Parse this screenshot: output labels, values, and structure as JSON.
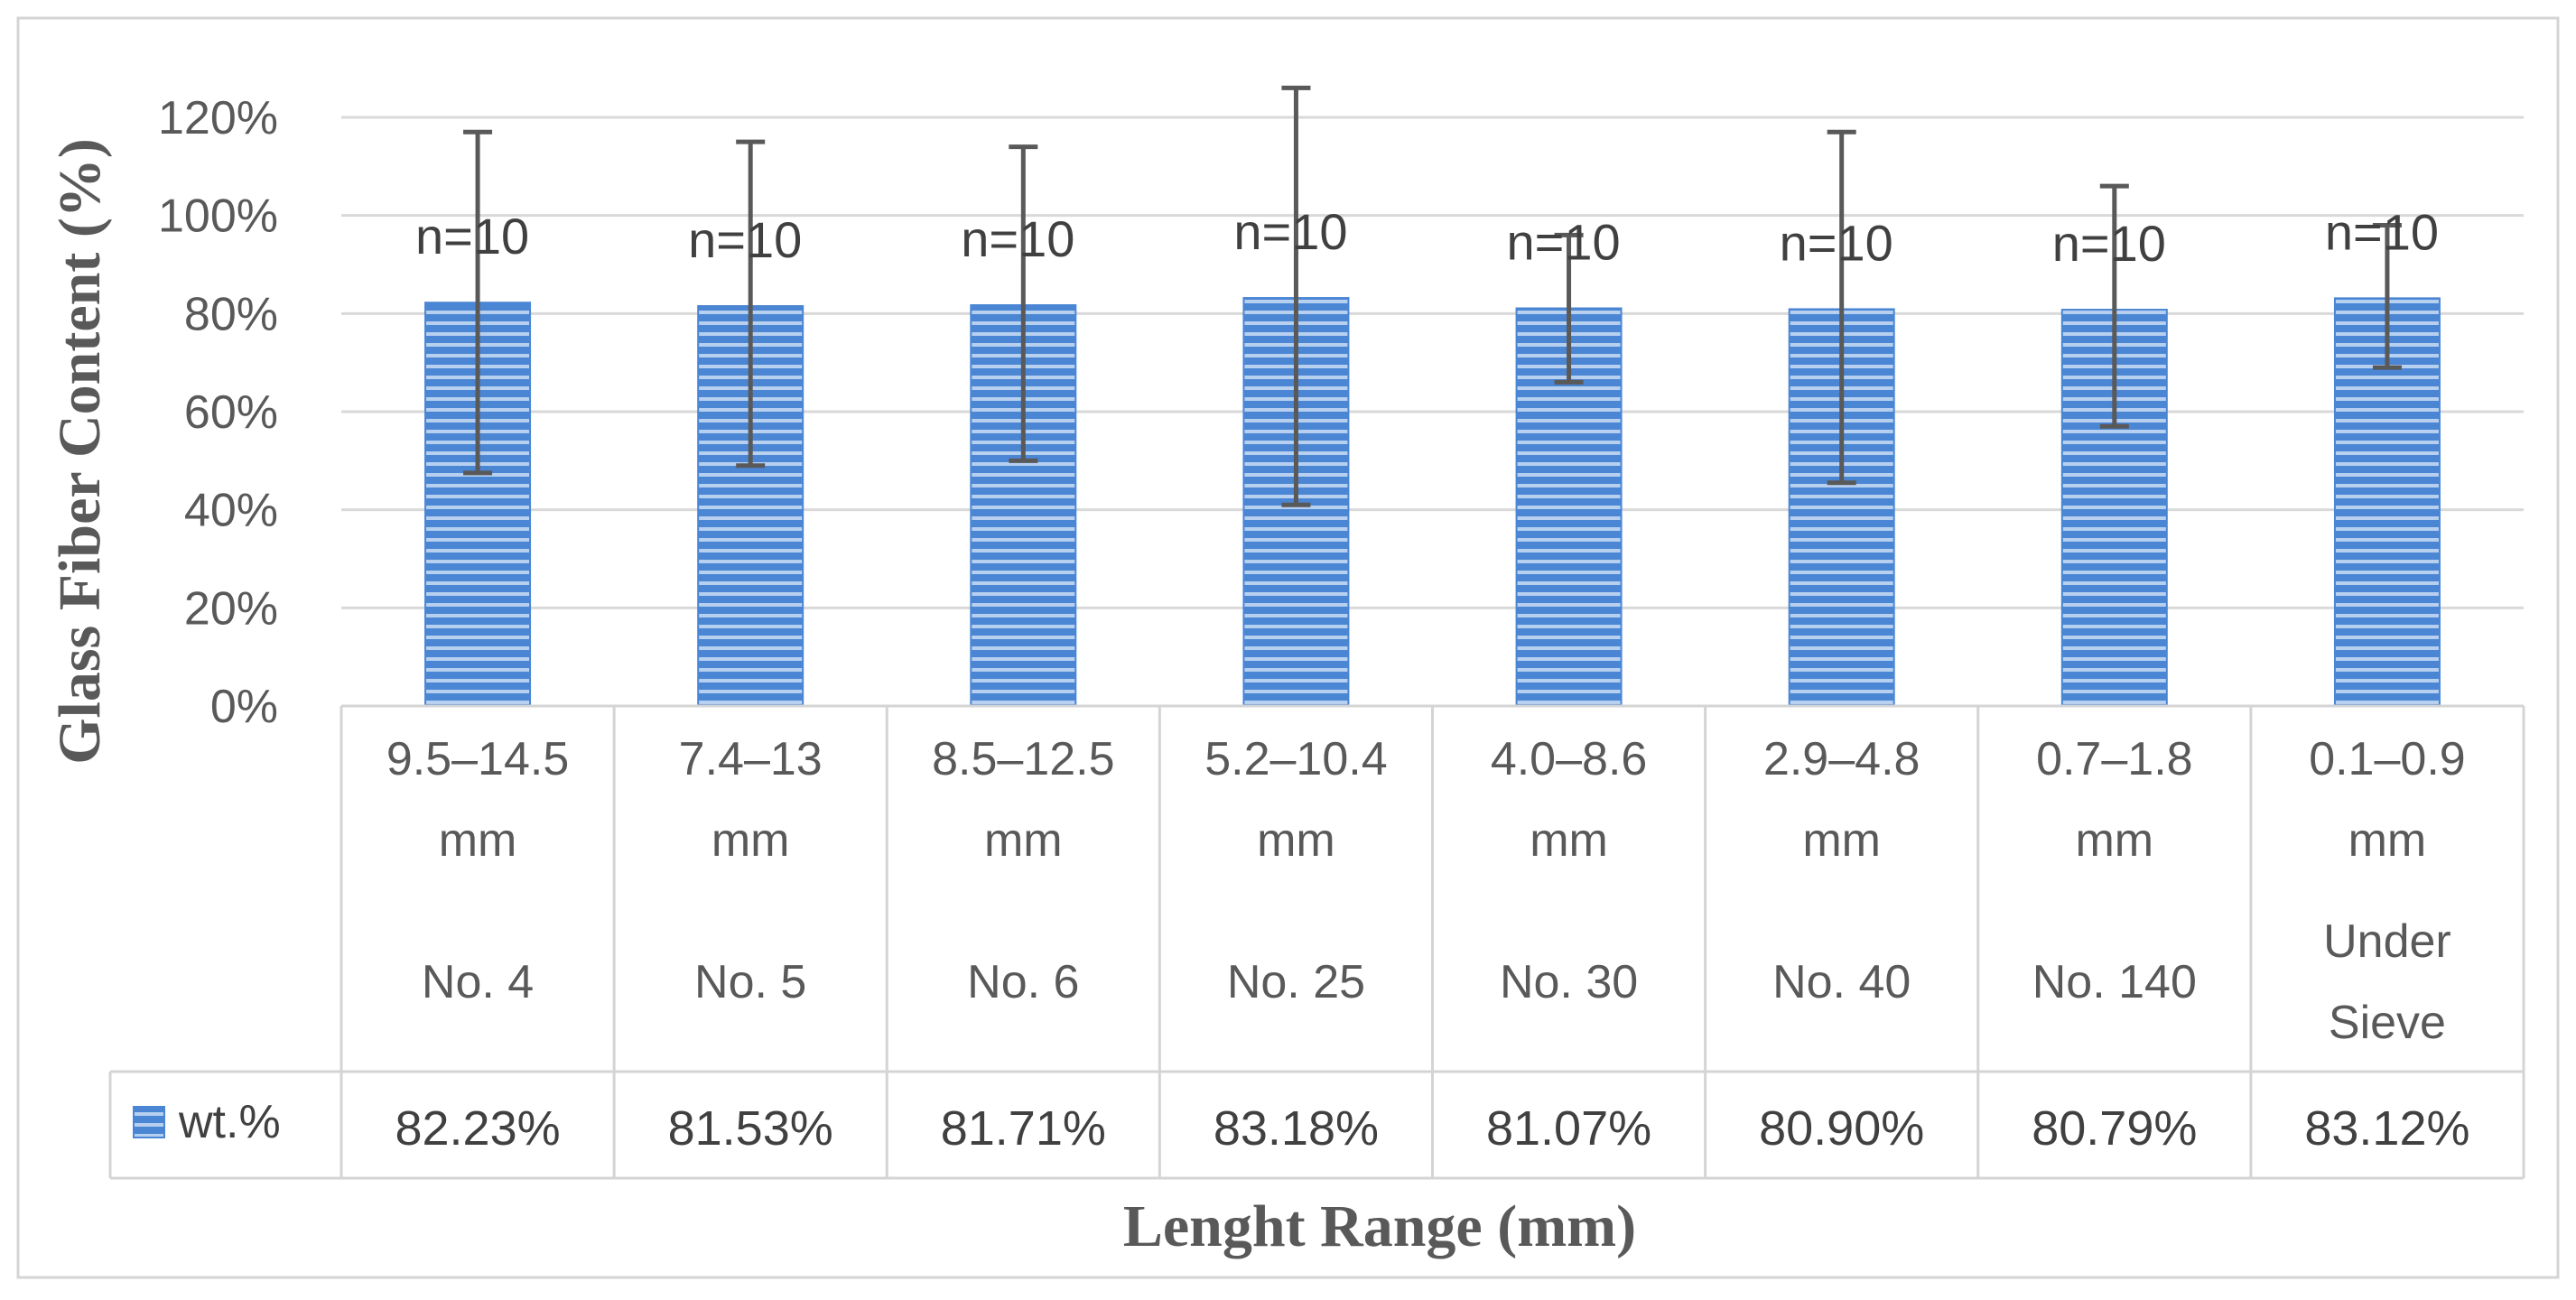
{
  "chart_data": {
    "type": "bar",
    "ylabel": "Glass Fiber Content (%)",
    "xlabel": "Lenght Range (mm)",
    "ylim": [
      0,
      120
    ],
    "yticks": [
      "0%",
      "20%",
      "40%",
      "60%",
      "80%",
      "100%",
      "120%"
    ],
    "categories": [
      [
        "9.5–14.5",
        "mm",
        "No. 4"
      ],
      [
        "7.4–13",
        "mm",
        "No. 5"
      ],
      [
        "8.5–12.5",
        "mm",
        "No. 6"
      ],
      [
        "5.2–10.4",
        "mm",
        "No. 25"
      ],
      [
        "4.0–8.6",
        "mm",
        "No. 30"
      ],
      [
        "2.9–4.8",
        "mm",
        "No. 40"
      ],
      [
        "0.7–1.8",
        "mm",
        "No. 140"
      ],
      [
        "0.1–0.9",
        "mm",
        "Under",
        "Sieve"
      ]
    ],
    "series": [
      {
        "name": "wt.%",
        "values": [
          82.23,
          81.53,
          81.71,
          83.18,
          81.07,
          80.9,
          80.79,
          83.12
        ],
        "value_labels": [
          "82.23%",
          "81.53%",
          "81.71%",
          "83.18%",
          "81.07%",
          "80.90%",
          "80.79%",
          "83.12%"
        ],
        "error_low": [
          47.5,
          49,
          50,
          41,
          66,
          45.5,
          57,
          69
        ],
        "error_high": [
          117,
          115,
          114,
          126,
          96,
          117,
          106,
          98
        ],
        "color": "#4a86d4"
      }
    ],
    "annotations": [
      "n=10",
      "n=10",
      "n=10",
      "n=10",
      "n=10",
      "n=10",
      "n=10",
      "n=10"
    ],
    "grid": true,
    "legend": "data-table"
  }
}
